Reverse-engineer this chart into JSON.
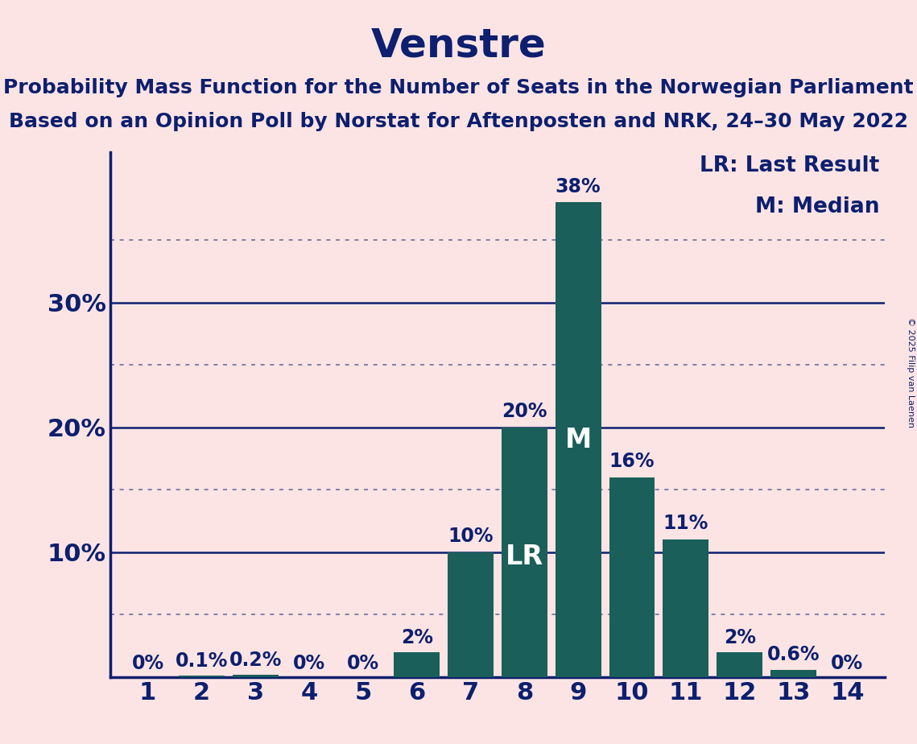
{
  "title": "Venstre",
  "subtitle1": "Probability Mass Function for the Number of Seats in the Norwegian Parliament",
  "subtitle2": "Based on an Opinion Poll by Norstat for Aftenposten and NRK, 24–30 May 2022",
  "copyright": "© 2025 Filip van Laenen",
  "seats": [
    1,
    2,
    3,
    4,
    5,
    6,
    7,
    8,
    9,
    10,
    11,
    12,
    13,
    14
  ],
  "probabilities": [
    0.0,
    0.1,
    0.2,
    0.0,
    0.0,
    2.0,
    10.0,
    20.0,
    38.0,
    16.0,
    11.0,
    2.0,
    0.6,
    0.0
  ],
  "bar_color": "#1a5f5a",
  "background_color": "#fce4e4",
  "text_color": "#0d1f6e",
  "bar_labels": [
    "0%",
    "0.1%",
    "0.2%",
    "0%",
    "0%",
    "2%",
    "10%",
    "20%",
    "38%",
    "16%",
    "11%",
    "2%",
    "0.6%",
    "0%"
  ],
  "lr_seat": 8,
  "median_seat": 9,
  "lr_label": "LR",
  "median_label": "M",
  "legend_lr": "LR: Last Result",
  "legend_m": "M: Median",
  "ylim": [
    0,
    42
  ],
  "yticks": [
    10,
    20,
    30
  ],
  "ytick_labels": [
    "10%",
    "20%",
    "30%"
  ],
  "dotted_lines": [
    5,
    15,
    25,
    35
  ],
  "title_fontsize": 36,
  "subtitle_fontsize": 18,
  "axis_label_fontsize": 22,
  "bar_label_fontsize": 17,
  "legend_fontsize": 19,
  "lr_fontsize": 24,
  "m_fontsize": 24
}
